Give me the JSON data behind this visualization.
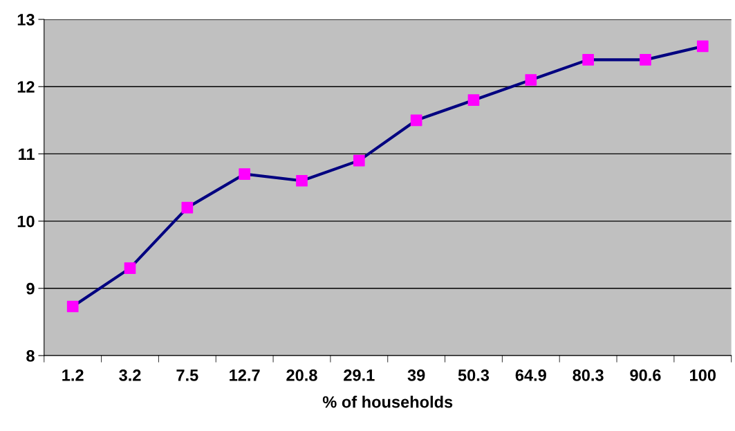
{
  "chart_data": {
    "type": "line",
    "xlabel": "% of households",
    "categories": [
      "1.2",
      "3.2",
      "7.5",
      "12.7",
      "20.8",
      "29.1",
      "39",
      "50.3",
      "64.9",
      "80.3",
      "90.6",
      "100"
    ],
    "series": [
      {
        "color": "#000080",
        "colors": [
          "#ff00ff",
          "#ff00ff",
          "#ff00ff",
          "#ff00ff",
          "#ff00ff",
          "#ff00ff",
          "#ff00ff",
          "#ff00ff",
          "#ff00ff",
          "#ff00ff",
          "#ff00ff",
          "#ff00ff"
        ],
        "values": [
          8.73,
          9.3,
          10.2,
          10.7,
          10.6,
          10.9,
          11.5,
          11.8,
          12.1,
          12.4,
          12.4,
          12.6
        ]
      }
    ],
    "marker": "square",
    "line_style": "solid",
    "ylim": [
      8,
      13
    ],
    "yticks": [
      8,
      9,
      10,
      11,
      12,
      13
    ],
    "grid": "y",
    "legend": false
  }
}
